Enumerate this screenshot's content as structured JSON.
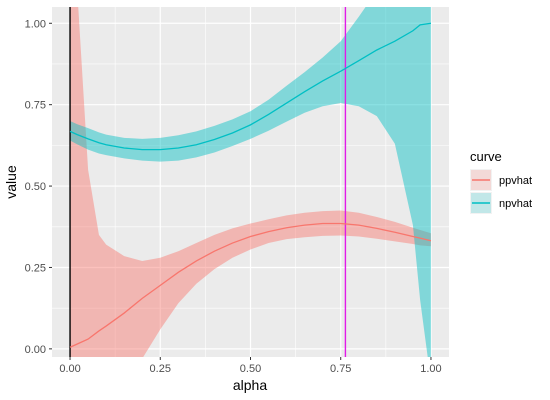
{
  "chart_data": {
    "type": "line",
    "xlabel": "alpha",
    "ylabel": "value",
    "xlim": [
      -0.05,
      1.05
    ],
    "ylim": [
      -0.025,
      1.05
    ],
    "x_ticks": [
      0.0,
      0.25,
      0.5,
      0.75,
      1.0
    ],
    "x_tick_labels": [
      "0.00",
      "0.25",
      "0.50",
      "0.75",
      "1.00"
    ],
    "y_ticks": [
      0.0,
      0.25,
      0.5,
      0.75,
      1.0
    ],
    "y_tick_labels": [
      "0.00",
      "0.25",
      "0.50",
      "0.75",
      "1.00"
    ],
    "grid": true,
    "legend": {
      "title": "curve",
      "position": "right"
    },
    "vlines": [
      {
        "x": 0.0,
        "color": "#000000"
      },
      {
        "x": 0.763,
        "color": "#E11BE8"
      }
    ],
    "x": [
      0.0,
      0.02,
      0.05,
      0.08,
      0.1,
      0.15,
      0.2,
      0.25,
      0.3,
      0.35,
      0.4,
      0.45,
      0.5,
      0.55,
      0.6,
      0.65,
      0.7,
      0.75,
      0.8,
      0.85,
      0.9,
      0.95,
      0.97,
      1.0
    ],
    "series": [
      {
        "name": "ppvhat",
        "color": "#F8766D",
        "values": [
          0.005,
          0.015,
          0.03,
          0.055,
          0.07,
          0.11,
          0.155,
          0.195,
          0.235,
          0.27,
          0.3,
          0.325,
          0.345,
          0.36,
          0.372,
          0.38,
          0.385,
          0.385,
          0.38,
          0.37,
          0.358,
          0.345,
          0.34,
          0.332
        ],
        "lower": [
          -0.1,
          -0.1,
          -0.1,
          -0.1,
          -0.1,
          -0.1,
          -0.03,
          0.06,
          0.14,
          0.2,
          0.245,
          0.28,
          0.305,
          0.325,
          0.337,
          0.343,
          0.347,
          0.348,
          0.345,
          0.338,
          0.33,
          0.322,
          0.318,
          0.315
        ],
        "upper": [
          1.1,
          1.1,
          0.55,
          0.35,
          0.32,
          0.285,
          0.27,
          0.28,
          0.3,
          0.325,
          0.35,
          0.37,
          0.385,
          0.398,
          0.41,
          0.418,
          0.423,
          0.425,
          0.418,
          0.405,
          0.39,
          0.372,
          0.365,
          0.355
        ]
      },
      {
        "name": "npvhat",
        "color": "#00BFC4",
        "values": [
          0.668,
          0.658,
          0.645,
          0.633,
          0.627,
          0.617,
          0.612,
          0.612,
          0.617,
          0.627,
          0.643,
          0.663,
          0.688,
          0.72,
          0.755,
          0.79,
          0.823,
          0.853,
          0.885,
          0.918,
          0.945,
          0.977,
          0.995,
          1.0
        ],
        "lower": [
          0.64,
          0.628,
          0.612,
          0.6,
          0.595,
          0.585,
          0.578,
          0.575,
          0.578,
          0.588,
          0.603,
          0.623,
          0.645,
          0.67,
          0.698,
          0.725,
          0.745,
          0.755,
          0.745,
          0.715,
          0.63,
          0.38,
          0.15,
          -0.1
        ],
        "upper": [
          0.7,
          0.69,
          0.678,
          0.665,
          0.658,
          0.648,
          0.645,
          0.648,
          0.656,
          0.668,
          0.685,
          0.705,
          0.73,
          0.765,
          0.808,
          0.85,
          0.895,
          0.945,
          1.02,
          1.1,
          1.1,
          1.1,
          1.1,
          1.1
        ]
      }
    ]
  }
}
